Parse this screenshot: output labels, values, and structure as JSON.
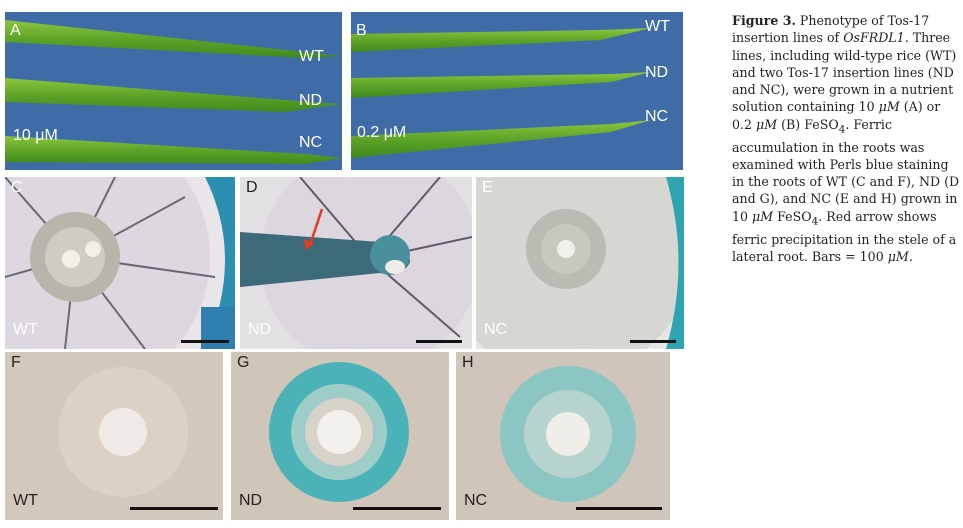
{
  "panels": {
    "A": {
      "letter": "A",
      "rows": [
        "WT",
        "ND",
        "NC"
      ],
      "concentration": "10 μM"
    },
    "B": {
      "letter": "B",
      "rows": [
        "WT",
        "ND",
        "NC"
      ],
      "concentration": "0.2 μM"
    },
    "C": {
      "letter": "C",
      "line": "WT"
    },
    "D": {
      "letter": "D",
      "line": "ND"
    },
    "E": {
      "letter": "E",
      "line": "NC"
    },
    "F": {
      "letter": "F",
      "line": "WT"
    },
    "G": {
      "letter": "G",
      "line": "ND"
    },
    "H": {
      "letter": "H",
      "line": "NC"
    }
  },
  "caption": {
    "label": "Figure 3.",
    "t1": " Phenotype of Tos-17 insertion lines of ",
    "gene": "OsFRDL1",
    "t2": ". Three lines, including wild-type rice (WT) and two Tos-17 insertion lines (ND and NC), were grown in a nutrient solution containing 10 ",
    "u1": "μM",
    "t3": " (A) or 0.2 ",
    "u2": "μM",
    "t4": " (B) FeSO",
    "sub1": "4",
    "t5": ". Ferric accumulation in the roots was examined with Perls blue staining in the roots of WT (C and F), ND (D and G), and NC (E and H) grown in 10 ",
    "u3": "μM",
    "t6": " FeSO",
    "sub2": "4",
    "t7": ". Red arrow shows ferric precipitation in the stele of a lateral root. Bars = 100 ",
    "u4": "μM",
    "t8": "."
  },
  "colors": {
    "leaf_bg": "#3d6aa5",
    "leaf": "#6cae2c",
    "perls_blue": "#2ea7b0",
    "tissue": "#d9cfc4"
  }
}
